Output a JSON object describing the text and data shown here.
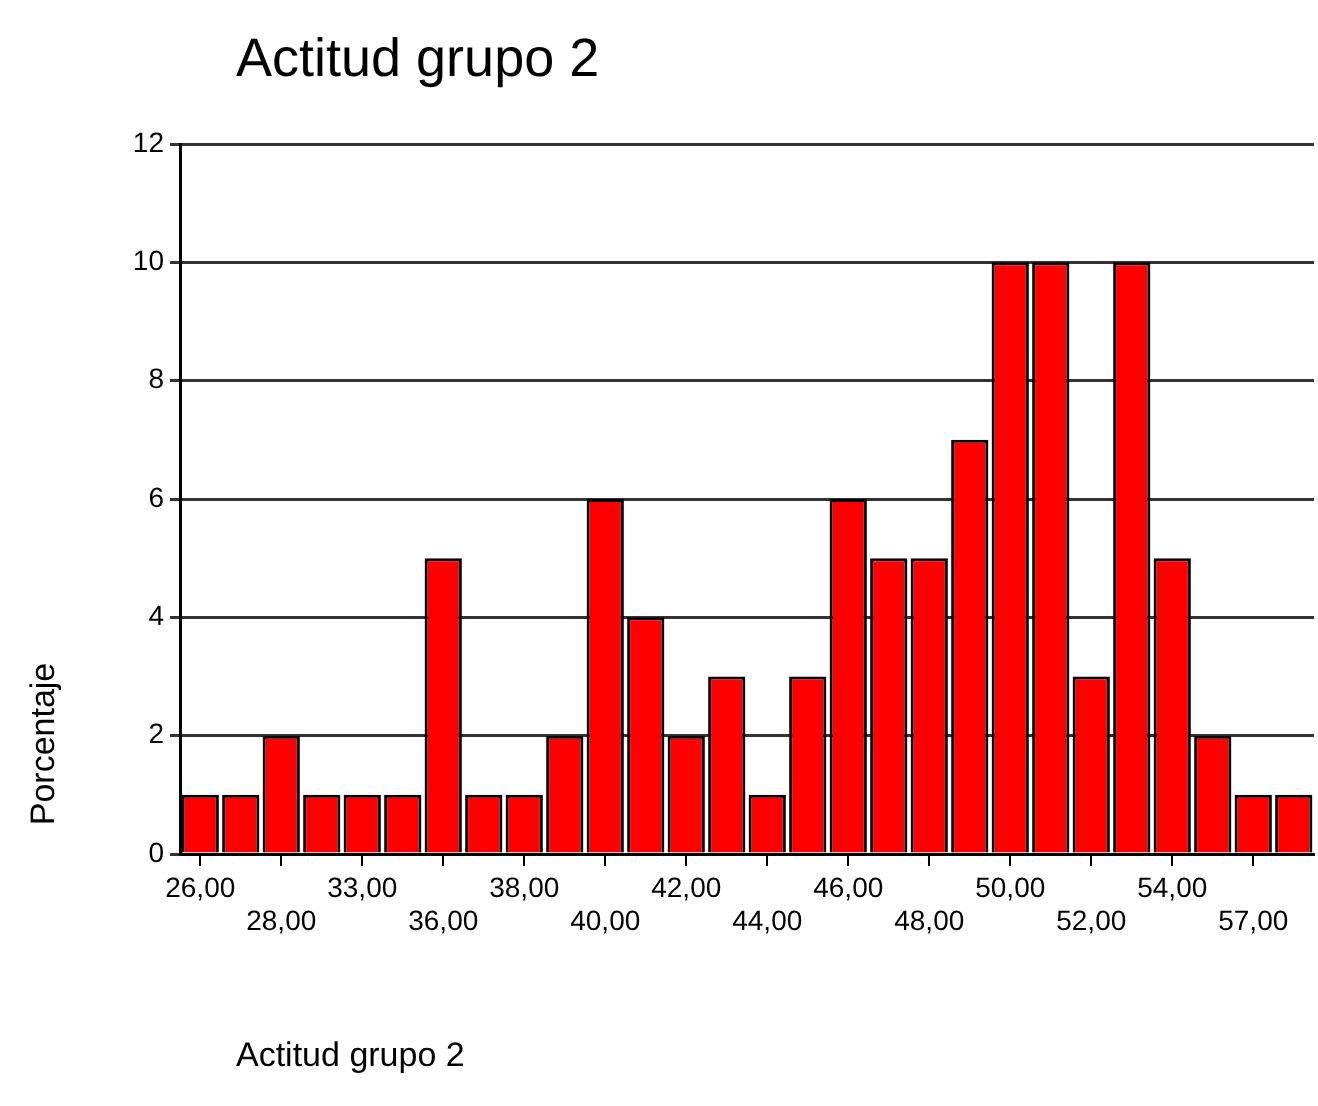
{
  "chart_data": {
    "type": "bar",
    "title": "Actitud grupo 2",
    "xlabel": "Actitud grupo 2",
    "ylabel": "Porcentaje",
    "categories": [
      "26,00",
      null,
      "28,00",
      null,
      "33,00",
      null,
      "36,00",
      null,
      "38,00",
      null,
      "40,00",
      null,
      "42,00",
      null,
      "44,00",
      null,
      "46,00",
      null,
      "48,00",
      null,
      "50,00",
      null,
      "52,00",
      null,
      "54,00",
      null,
      "57,00",
      null
    ],
    "values": [
      1,
      1,
      2,
      1,
      1,
      1,
      5,
      1,
      1,
      2,
      6,
      4,
      2,
      3,
      1,
      3,
      6,
      5,
      5,
      7,
      10,
      10,
      3,
      10,
      5,
      2,
      1,
      1
    ],
    "color": "#ff0000",
    "ylim": [
      0,
      12
    ],
    "yticks": [
      0,
      2,
      4,
      6,
      8,
      10,
      12
    ],
    "grid": "y"
  }
}
